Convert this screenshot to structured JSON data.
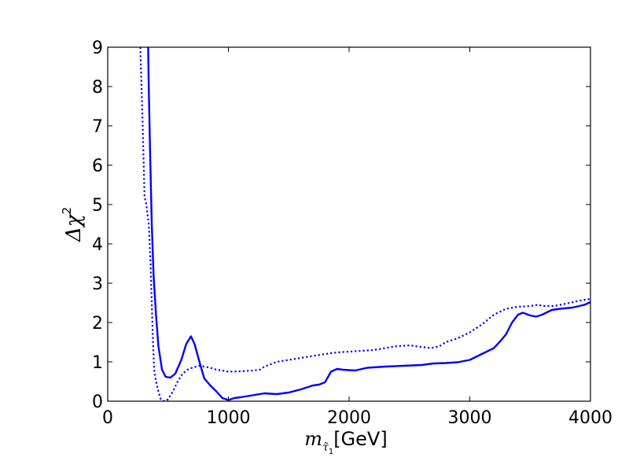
{
  "chart_data": {
    "type": "line",
    "xlabel": {
      "symbol": "m",
      "subscript": "τ̃",
      "subsubscript": "1",
      "unit": "[GeV]"
    },
    "ylabel": {
      "text": "Δχ",
      "superscript": "2"
    },
    "xlim": [
      0,
      4000
    ],
    "ylim": [
      0,
      9
    ],
    "x_ticks": [
      "0",
      "1000",
      "2000",
      "3000",
      "4000"
    ],
    "y_ticks": [
      "0",
      "1",
      "2",
      "3",
      "4",
      "5",
      "6",
      "7",
      "8",
      "9"
    ],
    "grid": false,
    "series": [
      {
        "style": "solid",
        "color": "#0000ff",
        "points": [
          [
            335,
            9.0
          ],
          [
            340,
            8.0
          ],
          [
            350,
            6.5
          ],
          [
            365,
            4.5
          ],
          [
            380,
            3.2
          ],
          [
            400,
            2.2
          ],
          [
            420,
            1.4
          ],
          [
            450,
            0.8
          ],
          [
            480,
            0.62
          ],
          [
            520,
            0.6
          ],
          [
            560,
            0.7
          ],
          [
            610,
            1.05
          ],
          [
            650,
            1.45
          ],
          [
            690,
            1.65
          ],
          [
            720,
            1.45
          ],
          [
            760,
            1.0
          ],
          [
            800,
            0.58
          ],
          [
            850,
            0.4
          ],
          [
            900,
            0.25
          ],
          [
            950,
            0.08
          ],
          [
            1000,
            0.03
          ],
          [
            1050,
            0.08
          ],
          [
            1100,
            0.1
          ],
          [
            1200,
            0.15
          ],
          [
            1300,
            0.2
          ],
          [
            1400,
            0.18
          ],
          [
            1500,
            0.22
          ],
          [
            1600,
            0.3
          ],
          [
            1700,
            0.4
          ],
          [
            1750,
            0.42
          ],
          [
            1800,
            0.48
          ],
          [
            1850,
            0.75
          ],
          [
            1900,
            0.82
          ],
          [
            1950,
            0.8
          ],
          [
            2050,
            0.78
          ],
          [
            2150,
            0.85
          ],
          [
            2300,
            0.88
          ],
          [
            2450,
            0.9
          ],
          [
            2600,
            0.92
          ],
          [
            2700,
            0.96
          ],
          [
            2800,
            0.97
          ],
          [
            2900,
            0.99
          ],
          [
            3000,
            1.05
          ],
          [
            3100,
            1.2
          ],
          [
            3200,
            1.35
          ],
          [
            3260,
            1.55
          ],
          [
            3300,
            1.7
          ],
          [
            3350,
            2.0
          ],
          [
            3400,
            2.2
          ],
          [
            3440,
            2.25
          ],
          [
            3500,
            2.18
          ],
          [
            3550,
            2.15
          ],
          [
            3600,
            2.2
          ],
          [
            3680,
            2.32
          ],
          [
            3750,
            2.35
          ],
          [
            3850,
            2.38
          ],
          [
            3950,
            2.45
          ],
          [
            4000,
            2.52
          ]
        ]
      },
      {
        "style": "dotted",
        "color": "#0000ff",
        "points": [
          [
            270,
            9.0
          ],
          [
            290,
            7.0
          ],
          [
            305,
            5.2
          ],
          [
            320,
            5.0
          ],
          [
            340,
            4.5
          ],
          [
            355,
            3.5
          ],
          [
            365,
            2.5
          ],
          [
            375,
            1.5
          ],
          [
            385,
            0.8
          ],
          [
            400,
            0.5
          ],
          [
            420,
            0.25
          ],
          [
            440,
            0.05
          ],
          [
            470,
            0.0
          ],
          [
            500,
            0.05
          ],
          [
            540,
            0.25
          ],
          [
            580,
            0.5
          ],
          [
            620,
            0.7
          ],
          [
            660,
            0.8
          ],
          [
            700,
            0.85
          ],
          [
            760,
            0.9
          ],
          [
            800,
            0.88
          ],
          [
            850,
            0.85
          ],
          [
            900,
            0.8
          ],
          [
            950,
            0.78
          ],
          [
            1000,
            0.75
          ],
          [
            1100,
            0.76
          ],
          [
            1200,
            0.78
          ],
          [
            1260,
            0.8
          ],
          [
            1300,
            0.88
          ],
          [
            1400,
            1.0
          ],
          [
            1500,
            1.05
          ],
          [
            1600,
            1.1
          ],
          [
            1700,
            1.15
          ],
          [
            1800,
            1.2
          ],
          [
            1900,
            1.24
          ],
          [
            2000,
            1.26
          ],
          [
            2100,
            1.28
          ],
          [
            2200,
            1.3
          ],
          [
            2300,
            1.35
          ],
          [
            2400,
            1.4
          ],
          [
            2500,
            1.42
          ],
          [
            2600,
            1.38
          ],
          [
            2680,
            1.35
          ],
          [
            2750,
            1.4
          ],
          [
            2800,
            1.5
          ],
          [
            2900,
            1.6
          ],
          [
            3000,
            1.75
          ],
          [
            3100,
            1.95
          ],
          [
            3200,
            2.2
          ],
          [
            3300,
            2.35
          ],
          [
            3400,
            2.4
          ],
          [
            3500,
            2.42
          ],
          [
            3560,
            2.45
          ],
          [
            3620,
            2.42
          ],
          [
            3700,
            2.42
          ],
          [
            3800,
            2.48
          ],
          [
            3900,
            2.55
          ],
          [
            4000,
            2.6
          ]
        ]
      }
    ]
  }
}
